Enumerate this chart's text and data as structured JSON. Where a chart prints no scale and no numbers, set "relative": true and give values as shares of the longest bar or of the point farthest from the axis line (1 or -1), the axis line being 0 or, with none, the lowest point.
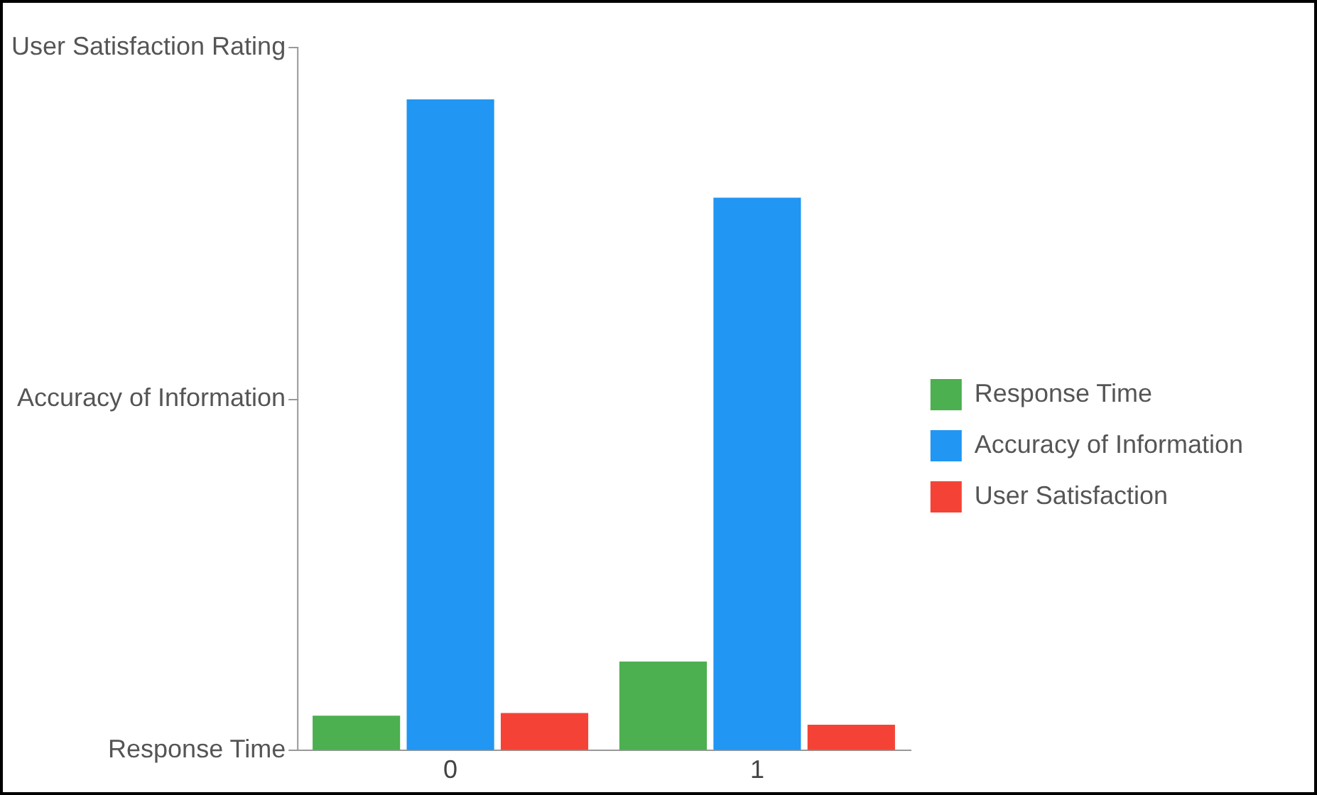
{
  "chart_data": {
    "type": "bar",
    "categories": [
      "0",
      "1"
    ],
    "relative": true,
    "series": [
      {
        "name": "Response Time",
        "color": "#4caf50",
        "values": [
          0.053,
          0.136
        ]
      },
      {
        "name": "Accuracy of Information",
        "color": "#2196f3",
        "values": [
          1,
          0.849
        ]
      },
      {
        "name": "User Satisfaction",
        "color": "#f44336",
        "values": [
          0.057,
          0.039
        ]
      }
    ],
    "annotations": [
      "Response Time",
      "Accuracy of Information",
      "User Satisfaction Rating"
    ],
    "legend": "right"
  }
}
